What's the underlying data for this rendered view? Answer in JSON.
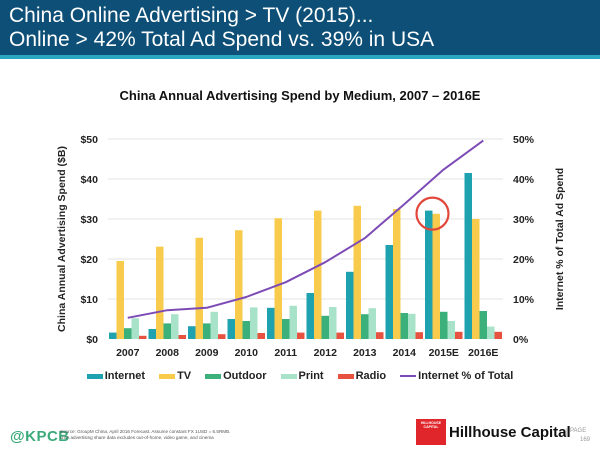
{
  "header": {
    "title_line1": "China Online Advertising > TV (2015)...",
    "title_line2": "Online > 42% Total Ad Spend vs. 39% in USA"
  },
  "chart_data": {
    "type": "bar",
    "title": "China Annual Advertising Spend by Medium, 2007 – 2016E",
    "xlabel": "",
    "ylabel": "China Annual Advertising Spend ($B)",
    "y2label": "Internet % of Total Ad Spend",
    "ylim": [
      0,
      50
    ],
    "y2lim": [
      0,
      50
    ],
    "yticks": [
      "$0",
      "$10",
      "$20",
      "$30",
      "$40",
      "$50"
    ],
    "y2ticks": [
      "0%",
      "10%",
      "20%",
      "30%",
      "40%",
      "50%"
    ],
    "grid": true,
    "legend_position": "bottom",
    "categories": [
      "2007",
      "2008",
      "2009",
      "2010",
      "2011",
      "2012",
      "2013",
      "2014",
      "2015E",
      "2016E"
    ],
    "series": [
      {
        "name": "Internet",
        "type": "bar",
        "color": "#1fa2b0",
        "values": [
          1.6,
          2.5,
          3.2,
          5.0,
          7.8,
          11.5,
          16.8,
          23.5,
          32.1,
          41.5
        ]
      },
      {
        "name": "TV",
        "type": "bar",
        "color": "#f9cb4c",
        "values": [
          19.5,
          23.1,
          25.3,
          27.2,
          30.2,
          32.1,
          33.3,
          32.5,
          31.3,
          30.0
        ]
      },
      {
        "name": "Outdoor",
        "type": "bar",
        "color": "#3bb07a",
        "values": [
          2.7,
          3.9,
          3.9,
          4.5,
          5.0,
          5.8,
          6.2,
          6.5,
          6.8,
          7.0
        ]
      },
      {
        "name": "Print",
        "type": "bar",
        "color": "#a8e2c8",
        "values": [
          5.2,
          6.2,
          6.8,
          7.9,
          8.3,
          8.0,
          7.7,
          6.3,
          4.5,
          3.1
        ]
      },
      {
        "name": "Radio",
        "type": "bar",
        "color": "#e6523f",
        "values": [
          0.8,
          1.0,
          1.2,
          1.5,
          1.6,
          1.6,
          1.7,
          1.7,
          1.8,
          1.8
        ]
      },
      {
        "name": "Internet % of Total",
        "type": "line",
        "axis": "right",
        "color": "#7d4bb5",
        "values": [
          5.3,
          7.2,
          7.8,
          10.5,
          14.2,
          19.2,
          25.2,
          33.7,
          42.4,
          49.6
        ]
      }
    ],
    "annotations": [
      {
        "type": "circle",
        "target": "2015E Internet vs TV",
        "color": "#e2463a"
      }
    ]
  },
  "footer": {
    "kpcb": "@KPCB",
    "source_line1": "Source: GroupM China, April 2016 Forecast. Assume constant FX 1USD = 6.5RMB.",
    "source_line2": "USA advertising share data excludes out-of-home, video game, and cinema",
    "logo_text": "HILLHOUSE CAPITAL",
    "company": "Hillhouse Capital",
    "separator": "|",
    "page_label": "PAGE",
    "page_number": "169"
  }
}
